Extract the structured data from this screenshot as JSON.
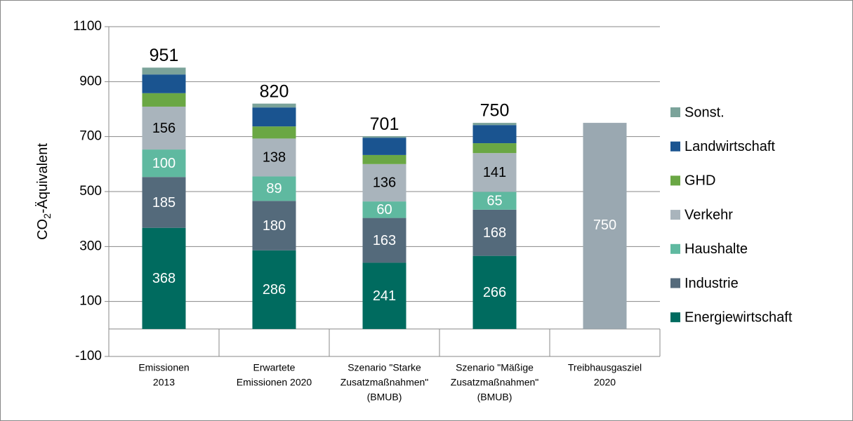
{
  "chart_data": {
    "type": "stacked_bar",
    "ylabel": [
      "CO",
      "2",
      "-Äquivalent"
    ],
    "categories": [
      [
        "Emissionen",
        "2013"
      ],
      [
        "Erwartete",
        "Emissionen 2020"
      ],
      [
        "Szenario \"Starke",
        "Zusatzmaßnahmen\"",
        "(BMUB)"
      ],
      [
        "Szenario \"Mäßige",
        "Zusatzmaßnahmen\"",
        "(BMUB)"
      ],
      [
        "Treibhausgasziel",
        "2020"
      ]
    ],
    "series": [
      {
        "name": "Energiewirtschaft",
        "color": "#006b5f",
        "values": [
          368,
          286,
          241,
          266,
          null
        ],
        "show_labels": true,
        "label_color": "#ffffff"
      },
      {
        "name": "Industrie",
        "color": "#546a7b",
        "values": [
          185,
          180,
          163,
          168,
          null
        ],
        "show_labels": true,
        "label_color": "#ffffff"
      },
      {
        "name": "Haushalte",
        "color": "#5fb9a0",
        "values": [
          100,
          89,
          60,
          65,
          null
        ],
        "show_labels": true,
        "label_color": "#ffffff"
      },
      {
        "name": "Verkehr",
        "color": "#a9b4bc",
        "values": [
          156,
          138,
          136,
          141,
          null
        ],
        "show_labels": true,
        "label_color": "#000000"
      },
      {
        "name": "GHD",
        "color": "#6aa744",
        "values": [
          49,
          44,
          33,
          36,
          null
        ],
        "show_labels": false
      },
      {
        "name": "Landwirtschaft",
        "color": "#1a5490",
        "values": [
          68,
          69,
          63,
          66,
          null
        ],
        "show_labels": false
      },
      {
        "name": "Sonst.",
        "color": "#7ba39a",
        "values": [
          25,
          14,
          5,
          8,
          null
        ],
        "show_labels": false
      }
    ],
    "target": {
      "color": "#9aa8b1",
      "values": [
        null,
        null,
        null,
        null,
        750
      ],
      "label_color": "#ffffff"
    },
    "totals": [
      951,
      820,
      701,
      750,
      null
    ],
    "ylim": [
      -100,
      1100
    ],
    "yticks": [
      -100,
      100,
      300,
      500,
      700,
      900,
      1100
    ],
    "grid": true,
    "legend": "right"
  }
}
